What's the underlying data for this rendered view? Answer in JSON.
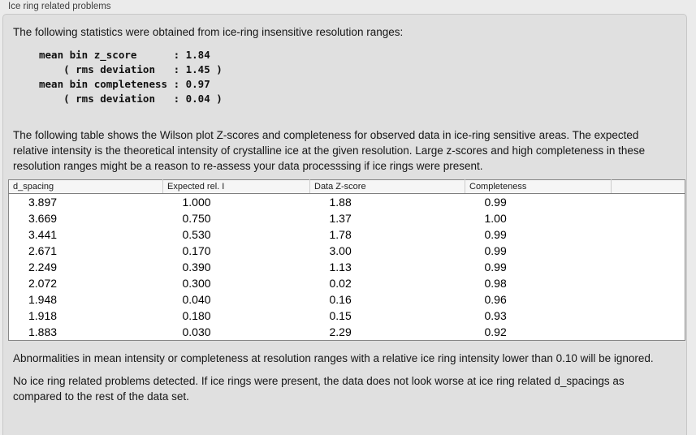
{
  "panel": {
    "title": "Ice ring related problems"
  },
  "intro": {
    "text": "The following statistics were obtained from ice-ring insensitive resolution ranges:",
    "stats_block": "mean bin z_score      : 1.84\n    ( rms deviation   : 1.45 )\nmean bin completeness : 0.97\n    ( rms deviation   : 0.04 )",
    "stats": {
      "mean_bin_z_score": "1.84",
      "z_score_rms_deviation": "1.45",
      "mean_bin_completeness": "0.97",
      "completeness_rms_deviation": "0.04"
    }
  },
  "description": {
    "text": "The following table shows the Wilson plot Z-scores and completeness for observed data in ice-ring sensitive areas. The expected relative intensity is the theoretical intensity of crystalline ice at the given resolution. Large z-scores and high completeness in these resolution ranges might be a reason to re-assess your data processsing if ice rings were present."
  },
  "table": {
    "columns": [
      "d_spacing",
      "Expected rel. I",
      "Data Z-score",
      "Completeness"
    ],
    "rows": [
      [
        "3.897",
        "1.000",
        "1.88",
        "0.99"
      ],
      [
        "3.669",
        "0.750",
        "1.37",
        "1.00"
      ],
      [
        "3.441",
        "0.530",
        "1.78",
        "0.99"
      ],
      [
        "2.671",
        "0.170",
        "3.00",
        "0.99"
      ],
      [
        "2.249",
        "0.390",
        "1.13",
        "0.99"
      ],
      [
        "2.072",
        "0.300",
        "0.02",
        "0.98"
      ],
      [
        "1.948",
        "0.040",
        "0.16",
        "0.96"
      ],
      [
        "1.918",
        "0.180",
        "0.15",
        "0.93"
      ],
      [
        "1.883",
        "0.030",
        "2.29",
        "0.92"
      ]
    ]
  },
  "notes": {
    "ignore_note": "Abnormalities in mean intensity or completeness at resolution ranges with a relative ice ring intensity lower than 0.10 will be ignored.",
    "conclusion": "No ice ring related problems detected. If ice rings were present, the data does not look worse at ice ring related d_spacings as compared to the rest of the data set."
  },
  "colors": {
    "window_background": "#ebebeb",
    "groupbox_background": "#e0e0e0",
    "groupbox_border": "#c7c7c7",
    "table_background": "#ffffff",
    "table_border": "#878787",
    "table_header_background": "#f6f6f6",
    "text": "#161616"
  }
}
